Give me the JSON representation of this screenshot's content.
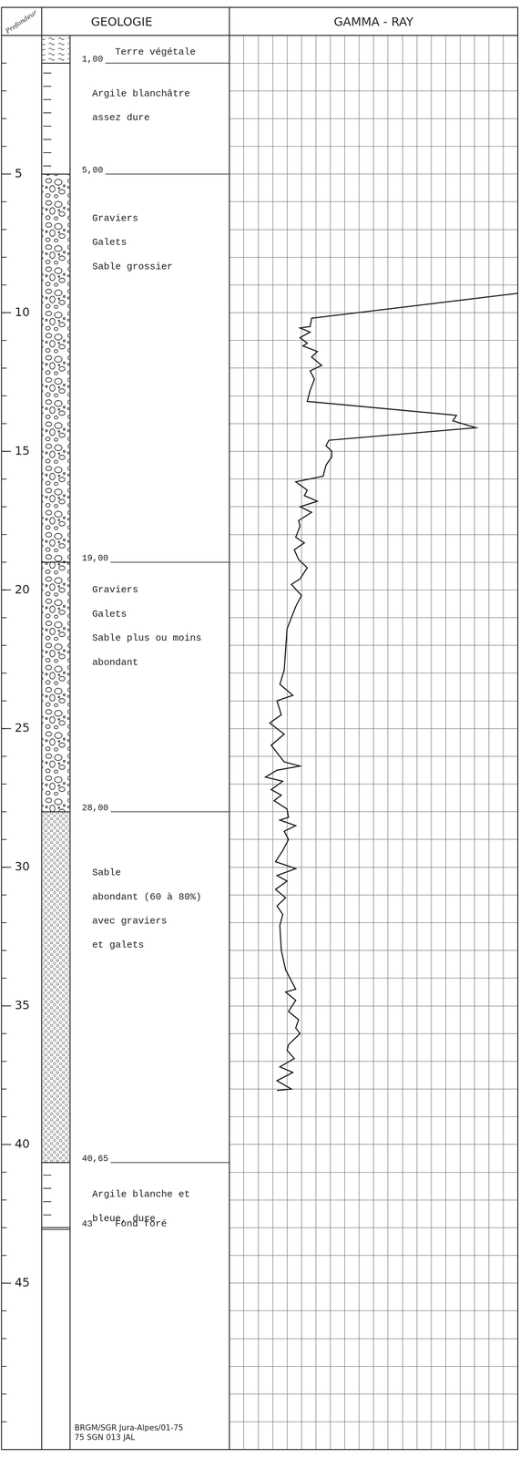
{
  "depth_axis": {
    "title": "Profondeur",
    "ticks": [
      5,
      10,
      15,
      20,
      25,
      30,
      35,
      40,
      45
    ]
  },
  "geology": {
    "title": "GEOLOGIE",
    "layers": [
      {
        "description": [
          "Terre végétale"
        ],
        "base": {
          "value": 1,
          "label": "1,00"
        }
      },
      {
        "description": [
          "Argile blanchâtre",
          "assez dure"
        ],
        "base": {
          "value": 5,
          "label": "5,00"
        }
      },
      {
        "description": [
          "Graviers",
          "Galets",
          "Sable grossier"
        ],
        "base": {
          "value": 19,
          "label": "19,00"
        }
      },
      {
        "description": [
          "Graviers",
          "Galets",
          "Sable plus ou moins",
          "abondant"
        ],
        "base": {
          "value": 28,
          "label": "28,00"
        }
      },
      {
        "description": [
          "Sable",
          "abondant (60 à 80%)",
          "avec graviers",
          "et galets"
        ],
        "base": {
          "value": 40.65,
          "label": "40,65"
        }
      },
      {
        "description": [
          "Argile blanche et",
          "bleue, dure"
        ],
        "base": {
          "value": 43,
          "label": "43"
        }
      }
    ],
    "bottom_note": "Fond foré"
  },
  "footer": [
    "BRGM/SGR Jura-Alpes/01-75",
    "75 SGN 013 JAL"
  ],
  "chart_data": {
    "type": "line",
    "title": "GAMMA - RAY",
    "color": "#1a1a1a",
    "grid": true,
    "tick_labels": false,
    "xlim": [
      0,
      20
    ],
    "xticks": [
      0,
      1,
      2,
      3,
      4,
      5,
      6,
      7,
      8,
      9,
      10,
      11,
      12,
      13,
      14,
      15,
      16,
      17,
      18,
      19,
      20
    ],
    "ylim": [
      0,
      51
    ],
    "yticks": [
      0,
      1,
      2,
      3,
      4,
      5,
      6,
      7,
      8,
      9,
      10,
      11,
      12,
      13,
      14,
      15,
      16,
      17,
      18,
      19,
      20,
      21,
      22,
      23,
      24,
      25,
      26,
      27,
      28,
      29,
      30,
      31,
      32,
      33,
      34,
      35,
      36,
      37,
      38,
      39,
      40,
      41,
      42,
      43,
      44,
      45,
      46,
      47,
      48,
      49,
      50,
      51
    ],
    "x": [
      20,
      5.7,
      5.6,
      4.9,
      5.6,
      4.9,
      5.4,
      5.1,
      6.1,
      5.7,
      6.4,
      5.6,
      5.9,
      5.6,
      5.4,
      15.75,
      15.5,
      17.1,
      6.9,
      6.7,
      7.1,
      7.1,
      6.7,
      6.5,
      4.6,
      5.4,
      5.2,
      6.1,
      4.9,
      5.7,
      4.8,
      4.9,
      4.6,
      5.2,
      4.5,
      4.8,
      5.4,
      4.9,
      4.3,
      5.0,
      4.6,
      4.0,
      3.8,
      3.5,
      4.4,
      3.3,
      3.6,
      2.8,
      3.8,
      2.9,
      3.5,
      3.8,
      4.9,
      3.3,
      2.5,
      3.7,
      2.9,
      3.6,
      3.1,
      4.0,
      4.1,
      3.5,
      4.6,
      3.8,
      4.1,
      3.7,
      3.2,
      4.6,
      3.3,
      4.0,
      3.2,
      3.9,
      3.3,
      3.7,
      3.5,
      3.6,
      3.9,
      4.6,
      3.9,
      4.6,
      4.1,
      4.8,
      4.6,
      4.9,
      4.1,
      4.0,
      4.5,
      3.5,
      4.4,
      3.3,
      4.3,
      3.3
    ],
    "values": [
      9.3,
      10.2,
      10.5,
      10.55,
      10.7,
      10.9,
      11.1,
      11.2,
      11.4,
      11.6,
      11.9,
      12.1,
      12.4,
      12.8,
      13.2,
      13.7,
      13.9,
      14.15,
      14.6,
      14.8,
      15.0,
      15.2,
      15.5,
      15.9,
      16.1,
      16.4,
      16.6,
      16.8,
      17.0,
      17.2,
      17.5,
      17.7,
      18.1,
      18.3,
      18.55,
      18.9,
      19.2,
      19.6,
      19.8,
      20.2,
      20.6,
      21.4,
      22.9,
      23.4,
      23.8,
      24.0,
      24.5,
      24.8,
      25.2,
      25.6,
      26.0,
      26.2,
      26.35,
      26.5,
      26.75,
      26.9,
      27.2,
      27.4,
      27.6,
      27.9,
      28.2,
      28.3,
      28.5,
      28.7,
      29.0,
      29.4,
      29.8,
      30.05,
      30.3,
      30.5,
      30.8,
      31.1,
      31.4,
      31.7,
      32.1,
      33.0,
      33.7,
      34.4,
      34.5,
      34.8,
      35.2,
      35.5,
      35.8,
      36.0,
      36.4,
      36.6,
      36.9,
      37.2,
      37.4,
      37.7,
      38.0,
      38.05
    ]
  }
}
